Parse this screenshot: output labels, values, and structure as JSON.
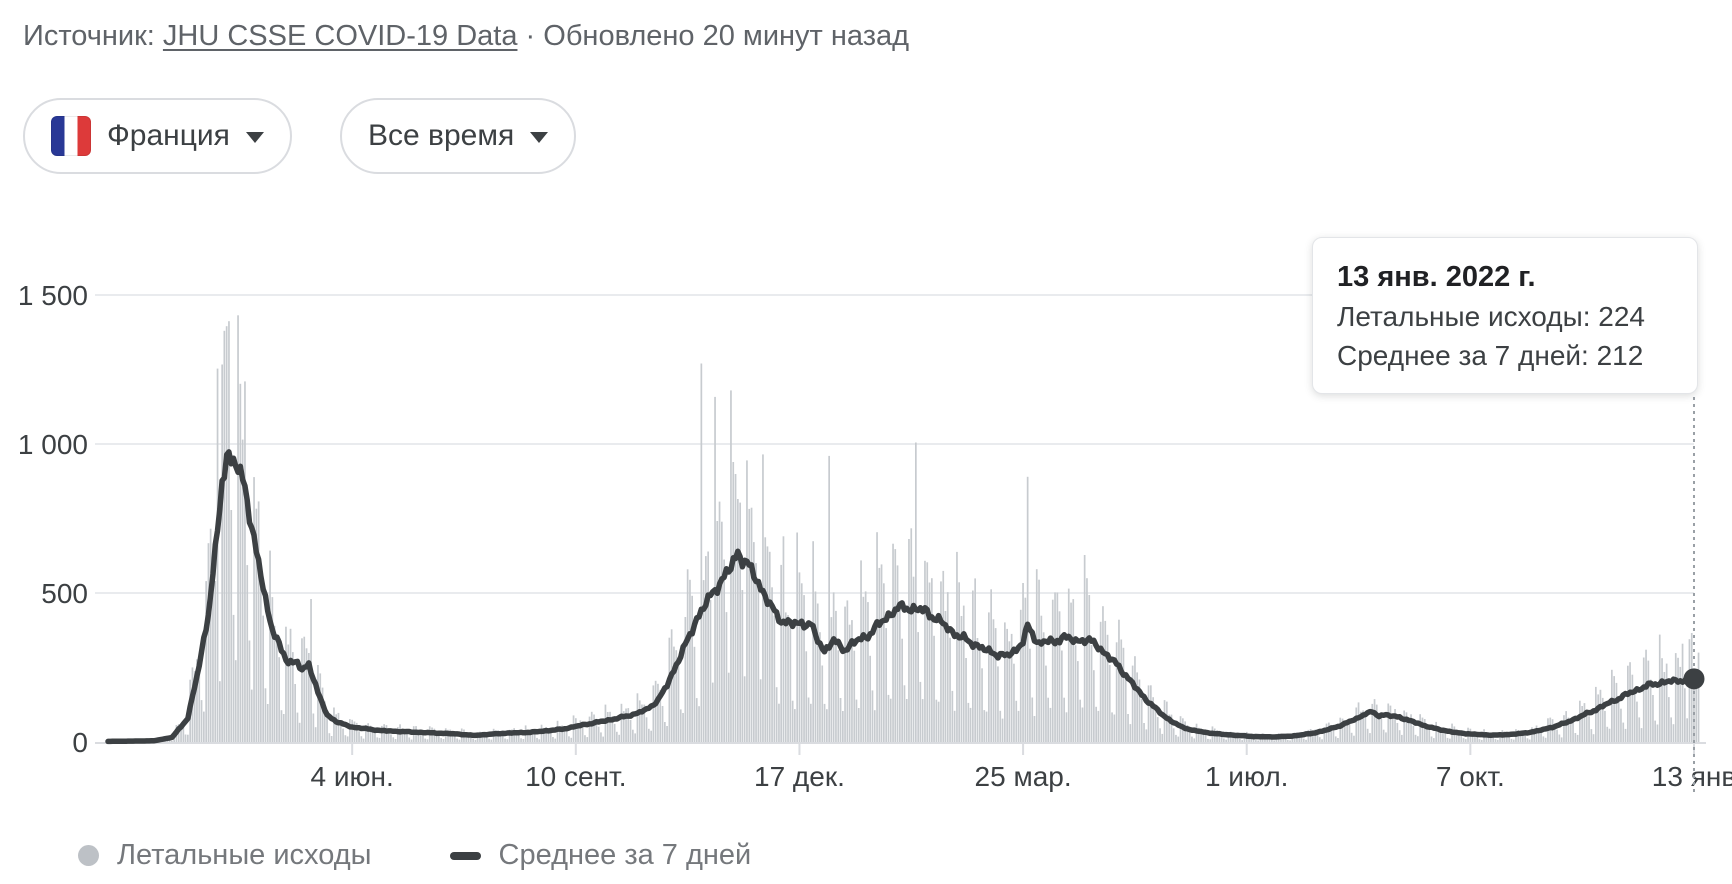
{
  "source_bar": {
    "label": "Источник:",
    "link": "JHU CSSE COVID-19 Data",
    "separator": "·",
    "updated": "Обновлено 20 минут назад"
  },
  "filters": {
    "country": {
      "label": "Франция",
      "flag": "france-flag"
    },
    "time_range": {
      "label": "Все время"
    }
  },
  "tooltip": {
    "date": "13 янв. 2022 г.",
    "deaths_line": "Летальные исходы: 224",
    "avg_line": "Среднее за 7 дней: 212"
  },
  "legend": [
    {
      "marker": "dot",
      "label": "Летальные исходы"
    },
    {
      "marker": "dash",
      "label": "Среднее за 7 дней"
    }
  ],
  "chart_data": {
    "type": "bar+line",
    "series": [
      {
        "name": "Летальные исходы",
        "type": "bar",
        "color": "#c7cbcf"
      },
      {
        "name": "Среднее за 7 дней",
        "type": "line",
        "color": "#3c4043"
      }
    ],
    "ylabel": "",
    "xlabel": "",
    "ylim": [
      0,
      1500
    ],
    "grid": true,
    "legend_position": "bottom",
    "y_ticks": [
      {
        "v": 0,
        "label": "0"
      },
      {
        "v": 500,
        "label": "500"
      },
      {
        "v": 1000,
        "label": "1 000"
      },
      {
        "v": 1500,
        "label": "1 500"
      }
    ],
    "x_ticks": [
      {
        "day": 107,
        "label": "4 июн."
      },
      {
        "day": 205,
        "label": "10 сент."
      },
      {
        "day": 303,
        "label": "17 дек."
      },
      {
        "day": 401,
        "label": "25 мар."
      },
      {
        "day": 499,
        "label": "1 июл."
      },
      {
        "day": 597,
        "label": "7 окт."
      },
      {
        "day": 695,
        "label": "13 янв"
      }
    ],
    "total_days": 695,
    "selected": {
      "day": 695,
      "bar": 224,
      "avg": 212,
      "date": "13 янв. 2022 г."
    },
    "avg_anchors": [
      [
        0,
        2
      ],
      [
        20,
        4
      ],
      [
        28,
        15
      ],
      [
        35,
        80
      ],
      [
        39,
        220
      ],
      [
        44,
        430
      ],
      [
        48,
        700
      ],
      [
        50,
        880
      ],
      [
        52,
        965
      ],
      [
        55,
        940
      ],
      [
        58,
        890
      ],
      [
        60,
        878
      ],
      [
        63,
        710
      ],
      [
        66,
        600
      ],
      [
        69,
        480
      ],
      [
        72,
        380
      ],
      [
        76,
        305
      ],
      [
        79,
        270
      ],
      [
        83,
        268
      ],
      [
        85,
        235
      ],
      [
        88,
        265
      ],
      [
        92,
        165
      ],
      [
        96,
        90
      ],
      [
        101,
        65
      ],
      [
        107,
        50
      ],
      [
        120,
        38
      ],
      [
        138,
        32
      ],
      [
        153,
        27
      ],
      [
        160,
        22
      ],
      [
        173,
        29
      ],
      [
        186,
        33
      ],
      [
        199,
        43
      ],
      [
        208,
        57
      ],
      [
        217,
        70
      ],
      [
        223,
        79
      ],
      [
        230,
        92
      ],
      [
        236,
        108
      ],
      [
        241,
        140
      ],
      [
        245,
        190
      ],
      [
        249,
        260
      ],
      [
        254,
        340
      ],
      [
        258,
        415
      ],
      [
        263,
        475
      ],
      [
        267,
        525
      ],
      [
        270,
        552
      ],
      [
        273,
        585
      ],
      [
        276,
        640
      ],
      [
        278,
        615
      ],
      [
        281,
        585
      ],
      [
        284,
        550
      ],
      [
        287,
        505
      ],
      [
        290,
        460
      ],
      [
        293,
        425
      ],
      [
        296,
        405
      ],
      [
        300,
        395
      ],
      [
        304,
        400
      ],
      [
        308,
        395
      ],
      [
        310,
        355
      ],
      [
        312,
        330
      ],
      [
        314,
        305
      ],
      [
        316,
        325
      ],
      [
        318,
        340
      ],
      [
        320,
        325
      ],
      [
        323,
        310
      ],
      [
        326,
        330
      ],
      [
        330,
        345
      ],
      [
        334,
        365
      ],
      [
        338,
        395
      ],
      [
        342,
        425
      ],
      [
        346,
        448
      ],
      [
        350,
        452
      ],
      [
        354,
        445
      ],
      [
        358,
        440
      ],
      [
        362,
        420
      ],
      [
        366,
        395
      ],
      [
        370,
        370
      ],
      [
        374,
        350
      ],
      [
        378,
        335
      ],
      [
        382,
        320
      ],
      [
        385,
        305
      ],
      [
        388,
        300
      ],
      [
        391,
        292
      ],
      [
        394,
        288
      ],
      [
        398,
        310
      ],
      [
        401,
        340
      ],
      [
        403,
        385
      ],
      [
        406,
        350
      ],
      [
        408,
        332
      ],
      [
        412,
        340
      ],
      [
        415,
        330
      ],
      [
        418,
        358
      ],
      [
        421,
        345
      ],
      [
        424,
        338
      ],
      [
        428,
        345
      ],
      [
        430,
        340
      ],
      [
        434,
        320
      ],
      [
        438,
        290
      ],
      [
        442,
        260
      ],
      [
        446,
        225
      ],
      [
        450,
        185
      ],
      [
        454,
        150
      ],
      [
        458,
        120
      ],
      [
        462,
        92
      ],
      [
        466,
        70
      ],
      [
        470,
        52
      ],
      [
        475,
        40
      ],
      [
        481,
        32
      ],
      [
        488,
        26
      ],
      [
        495,
        22
      ],
      [
        503,
        18
      ],
      [
        511,
        17
      ],
      [
        519,
        20
      ],
      [
        527,
        28
      ],
      [
        534,
        40
      ],
      [
        541,
        58
      ],
      [
        547,
        78
      ],
      [
        551,
        95
      ],
      [
        554,
        100
      ],
      [
        557,
        88
      ],
      [
        560,
        92
      ],
      [
        563,
        85
      ],
      [
        566,
        84
      ],
      [
        569,
        75
      ],
      [
        573,
        65
      ],
      [
        577,
        55
      ],
      [
        581,
        46
      ],
      [
        586,
        38
      ],
      [
        591,
        31
      ],
      [
        597,
        27
      ],
      [
        603,
        24
      ],
      [
        609,
        23
      ],
      [
        615,
        26
      ],
      [
        621,
        30
      ],
      [
        627,
        38
      ],
      [
        633,
        50
      ],
      [
        639,
        65
      ],
      [
        645,
        85
      ],
      [
        651,
        105
      ],
      [
        657,
        128
      ],
      [
        663,
        150
      ],
      [
        669,
        172
      ],
      [
        675,
        190
      ],
      [
        681,
        200
      ],
      [
        687,
        205
      ],
      [
        692,
        210
      ],
      [
        695,
        212
      ]
    ],
    "bar_outliers": {
      "48": 1253,
      "51": 1380,
      "53": 1412,
      "57": 1432,
      "60": 1210,
      "89": 480,
      "260": 1270,
      "266": 1158,
      "273": 1180,
      "280": 945,
      "287": 965,
      "316": 960,
      "354": 1005,
      "403": 890,
      "690": 330,
      "693": 345,
      "695": 224,
      "696": 195,
      "697": 300
    },
    "weekday_factors": [
      0.3,
      1.55,
      1.45,
      1.3,
      1.15,
      0.85,
      0.4
    ],
    "bar_clamp": 1445,
    "colors": {
      "bar": "#c7cbcf",
      "line": "#3c4043",
      "grid": "#e9ebee",
      "axis": "#dadce0",
      "crosshair": "#9aa0a6",
      "tick_label": "#3c4043",
      "legend_text": "#75787c"
    }
  }
}
